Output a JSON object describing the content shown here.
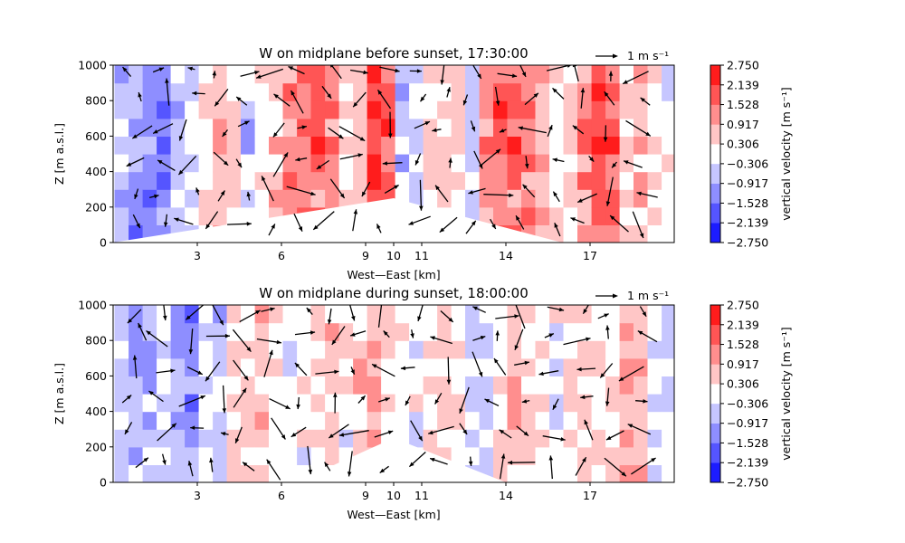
{
  "chart_data": [
    {
      "type": "heatmap",
      "title": "W on midplane before sunset, 17:30:00",
      "xlabel": "West—East [km]",
      "ylabel": "Z [m a.s.l.]",
      "xlim": [
        0,
        20
      ],
      "ylim": [
        0,
        1000
      ],
      "xticks": [
        3,
        6,
        9,
        10,
        11,
        14,
        17
      ],
      "yticks": [
        0,
        200,
        400,
        600,
        800,
        1000
      ],
      "colorbar": {
        "label": "vertical velocity [m s⁻¹]",
        "ticks": [
          "2.750",
          "2.139",
          "1.528",
          "0.917",
          "0.306",
          "−0.306",
          "−0.917",
          "−1.528",
          "−2.139",
          "−2.750"
        ],
        "range": [
          -2.75,
          2.75
        ],
        "colors": {
          "negative": "#0000ff",
          "zero": "#ffffff",
          "positive": "#ff0000"
        }
      },
      "quiver_key": "1 m s⁻¹",
      "terrain": {
        "type": "ridge",
        "peak_km": 10,
        "peak_m": 250,
        "base_left_km": 0,
        "base_right_km": 16,
        "base_m": 0
      },
      "w_columns_approx": {
        "x_km": [
          0.3,
          0.8,
          1.3,
          1.8,
          2.3,
          2.8,
          3.3,
          3.8,
          4.3,
          4.8,
          5.3,
          5.8,
          6.3,
          6.8,
          7.3,
          7.8,
          8.3,
          8.8,
          9.3,
          9.8,
          10.3,
          10.8,
          11.3,
          11.8,
          12.3,
          12.8,
          13.3,
          13.8,
          14.3,
          14.8,
          15.3,
          15.8,
          16.3,
          16.8,
          17.3,
          17.8,
          18.3,
          18.8,
          19.3,
          19.8
        ],
        "w_ms": [
          -0.8,
          -1.2,
          -1.4,
          -1.8,
          -1.0,
          -0.3,
          0.4,
          0.9,
          0.6,
          -0.6,
          0.3,
          0.9,
          1.2,
          1.6,
          2.4,
          1.5,
          0.5,
          0.8,
          2.6,
          1.8,
          -1.0,
          -0.5,
          0.3,
          0.6,
          0.4,
          -0.4,
          1.2,
          1.8,
          2.0,
          1.4,
          0.9,
          0.3,
          0.6,
          1.4,
          2.3,
          1.9,
          0.6,
          0.9,
          0.3,
          -0.1
        ]
      }
    },
    {
      "type": "heatmap",
      "title": "W on midplane during sunset, 18:00:00",
      "xlabel": "West—East [km]",
      "ylabel": "Z [m a.s.l.]",
      "xlim": [
        0,
        20
      ],
      "ylim": [
        0,
        1000
      ],
      "xticks": [
        3,
        6,
        9,
        10,
        11,
        14,
        17
      ],
      "yticks": [
        0,
        200,
        400,
        600,
        800,
        1000
      ],
      "colorbar": {
        "label": "vertical velocity [m s⁻¹]",
        "ticks": [
          "2.750",
          "2.139",
          "1.528",
          "0.917",
          "0.306",
          "−0.306",
          "−0.917",
          "−1.528",
          "−2.139",
          "−2.750"
        ],
        "range": [
          -2.75,
          2.75
        ],
        "colors": {
          "negative": "#0000ff",
          "zero": "#ffffff",
          "positive": "#ff0000"
        }
      },
      "quiver_key": "1 m s⁻¹",
      "terrain": {
        "type": "ridge",
        "peak_km": 10,
        "peak_m": 250,
        "base_left_km": 6.5,
        "base_right_km": 14,
        "base_m": 0
      },
      "w_columns_approx": {
        "x_km": [
          0.3,
          0.8,
          1.3,
          1.8,
          2.3,
          2.8,
          3.3,
          3.8,
          4.3,
          4.8,
          5.3,
          5.8,
          6.3,
          6.8,
          7.3,
          7.8,
          8.3,
          8.8,
          9.3,
          9.8,
          10.3,
          10.8,
          11.3,
          11.8,
          12.3,
          12.8,
          13.3,
          13.8,
          14.3,
          14.8,
          15.3,
          15.8,
          16.3,
          16.8,
          17.3,
          17.8,
          18.3,
          18.8,
          19.3,
          19.8
        ],
        "w_ms": [
          -0.5,
          -0.9,
          -0.7,
          -0.4,
          -1.0,
          -1.6,
          -0.3,
          -0.5,
          0.3,
          0.4,
          0.9,
          0.2,
          -0.3,
          -0.2,
          0.4,
          0.6,
          0.2,
          0.6,
          1.0,
          0.5,
          -0.3,
          -0.2,
          0.3,
          0.4,
          0.2,
          -0.6,
          -0.4,
          0.5,
          0.6,
          0.4,
          0.2,
          -0.2,
          0.4,
          0.5,
          0.3,
          0.6,
          1.1,
          0.7,
          -0.2,
          -0.4
        ]
      }
    }
  ]
}
